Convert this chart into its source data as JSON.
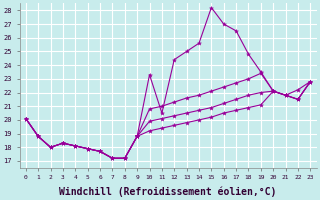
{
  "background_color": "#c8ecec",
  "grid_color": "#ffffff",
  "line_color": "#990099",
  "xlabel": "Windchill (Refroidissement éolien,°C)",
  "xlabel_fontsize": 7,
  "ylim": [
    16.5,
    28.5
  ],
  "xlim": [
    -0.5,
    23.5
  ],
  "yticks": [
    17,
    18,
    19,
    20,
    21,
    22,
    23,
    24,
    25,
    26,
    27,
    28
  ],
  "xticks": [
    0,
    1,
    2,
    3,
    4,
    5,
    6,
    7,
    8,
    9,
    10,
    11,
    12,
    13,
    14,
    15,
    16,
    17,
    18,
    19,
    20,
    21,
    22,
    23
  ],
  "common_x": [
    0,
    1,
    2,
    3,
    4,
    5,
    6,
    7,
    8,
    9
  ],
  "common_y": [
    20.1,
    18.8,
    18.0,
    18.3,
    18.1,
    17.9,
    17.7,
    17.2,
    17.2,
    18.8
  ],
  "series_x": [
    [
      9,
      10,
      11,
      12,
      13,
      14,
      15,
      16,
      17,
      18,
      19,
      20,
      21,
      22,
      23
    ],
    [
      9,
      10,
      11,
      12,
      13,
      14,
      15,
      16,
      17,
      18,
      19,
      20,
      21,
      22,
      23
    ],
    [
      9,
      10,
      11,
      12,
      13,
      14,
      15,
      16,
      17,
      18,
      19,
      20,
      21,
      22,
      23
    ],
    [
      9,
      10,
      11,
      12,
      13,
      14,
      15,
      16,
      17,
      18,
      19,
      20,
      21,
      22,
      23
    ]
  ],
  "series_y": [
    [
      18.8,
      23.3,
      20.5,
      24.4,
      25.0,
      25.6,
      28.2,
      27.0,
      26.5,
      24.8,
      23.5,
      22.1,
      21.8,
      21.5,
      22.8
    ],
    [
      18.8,
      20.8,
      21.0,
      21.3,
      21.6,
      21.8,
      22.1,
      22.4,
      22.7,
      23.0,
      23.4,
      22.1,
      21.8,
      22.2,
      22.8
    ],
    [
      18.8,
      19.9,
      20.1,
      20.3,
      20.5,
      20.7,
      20.9,
      21.2,
      21.5,
      21.8,
      22.0,
      22.1,
      21.8,
      21.5,
      22.8
    ],
    [
      18.8,
      19.2,
      19.4,
      19.6,
      19.8,
      20.0,
      20.2,
      20.5,
      20.7,
      20.9,
      21.1,
      22.1,
      21.8,
      21.5,
      22.8
    ]
  ]
}
